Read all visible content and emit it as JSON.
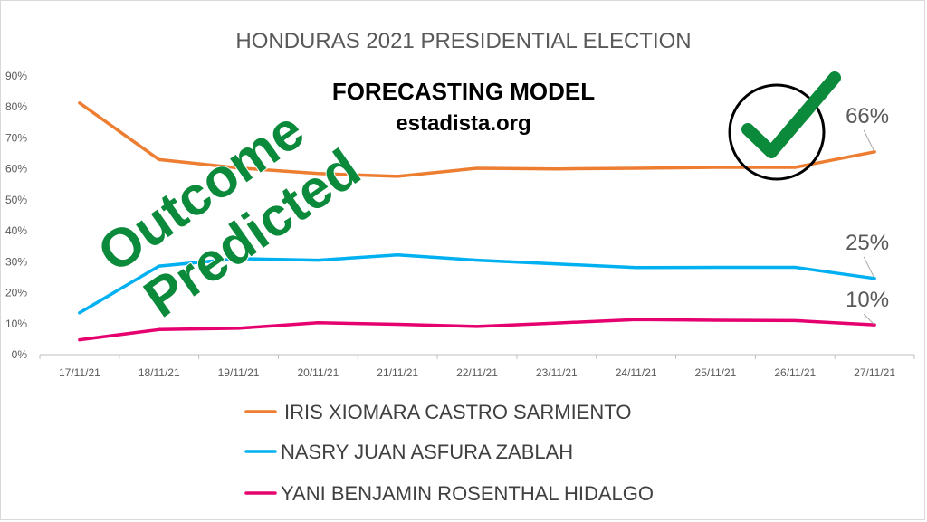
{
  "chart_data": {
    "type": "line",
    "title": "HONDURAS 2021 PRESIDENTIAL ELECTION",
    "subtitle": "FORECASTING MODEL",
    "source": "estadista.org",
    "stamp_text": "Outcome Predicted",
    "categories": [
      "17/11/21",
      "18/11/21",
      "19/11/21",
      "20/11/21",
      "21/11/21",
      "22/11/21",
      "23/11/21",
      "24/11/21",
      "25/11/21",
      "26/11/21",
      "27/11/21"
    ],
    "y_ticks": [
      "0%",
      "10%",
      "20%",
      "30%",
      "40%",
      "50%",
      "60%",
      "70%",
      "80%",
      "90%"
    ],
    "ylim": [
      0,
      90
    ],
    "y_unit": "%",
    "grid": false,
    "legend_position": "bottom",
    "series": [
      {
        "name": "IRIS XIOMARA CASTRO SARMIENTO",
        "color": "#ED7D31",
        "values": [
          81.3,
          63.0,
          60.3,
          58.5,
          57.6,
          60.2,
          60.0,
          60.2,
          60.5,
          60.5,
          65.5
        ],
        "end_label": "66%"
      },
      {
        "name": "NASRY JUAN ASFURA ZABLAH",
        "color": "#00B0F0",
        "values": [
          13.5,
          28.6,
          31.0,
          30.5,
          32.2,
          30.5,
          29.3,
          28.1,
          28.2,
          28.2,
          24.6
        ],
        "end_label": "25%"
      },
      {
        "name": "YANI BENJAMIN ROSENTHAL HIDALGO",
        "color": "#E6006F",
        "values": [
          4.8,
          8.1,
          8.5,
          10.3,
          9.8,
          9.1,
          10.2,
          11.3,
          11.1,
          11.0,
          9.6
        ],
        "end_label": "10%"
      }
    ]
  },
  "colors": {
    "stamp_green": "#0A8A3A",
    "axis_text": "#595959",
    "axis_line": "#bfbfbf"
  }
}
